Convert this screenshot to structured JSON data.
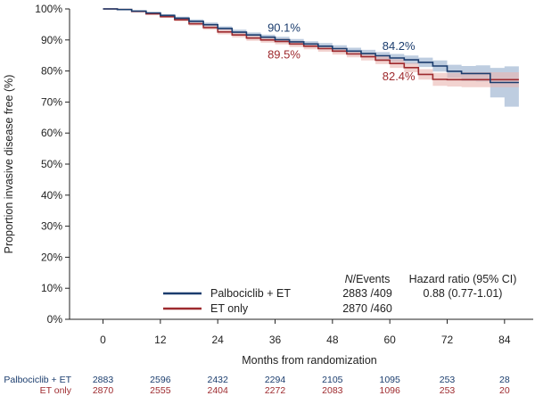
{
  "chart_data": {
    "type": "line",
    "title": "",
    "xlabel": "Months from randomization",
    "ylabel": "Proportion invasive disease free (%)",
    "xlim": [
      -7,
      90
    ],
    "ylim": [
      0,
      100
    ],
    "xticks": [
      0,
      12,
      24,
      36,
      48,
      60,
      72,
      84
    ],
    "yticks": [
      0,
      10,
      20,
      30,
      40,
      50,
      60,
      70,
      80,
      90,
      100
    ],
    "ytick_labels": [
      "0%",
      "10%",
      "20%",
      "30%",
      "40%",
      "50%",
      "60%",
      "70%",
      "80%",
      "90%",
      "100%"
    ],
    "colors": {
      "palbociclib": "#1b3d6e",
      "et_only": "#9e2a2e",
      "palbociclib_ci": "#a8bcd6",
      "et_only_ci": "#eab5b0"
    },
    "series": [
      {
        "name": "Palbociclib + ET",
        "color": "#1b3d6e",
        "x": [
          0,
          3,
          6,
          9,
          12,
          15,
          18,
          21,
          24,
          27,
          30,
          33,
          36,
          39,
          42,
          45,
          48,
          51,
          54,
          57,
          60,
          63,
          66,
          69,
          72,
          75,
          78,
          81,
          84,
          87
        ],
        "y": [
          100,
          99.8,
          99.3,
          98.7,
          97.9,
          97.0,
          96.0,
          94.9,
          93.7,
          92.5,
          91.6,
          90.9,
          90.1,
          89.4,
          88.7,
          88.0,
          87.2,
          86.4,
          85.6,
          84.9,
          84.2,
          83.6,
          82.8,
          81.6,
          79.9,
          79.2,
          79.2,
          76.3,
          76.3,
          76.3
        ],
        "ci_upper": [
          100,
          99.9,
          99.5,
          99.0,
          98.3,
          97.5,
          96.6,
          95.6,
          94.4,
          93.3,
          92.4,
          91.7,
          91.0,
          90.3,
          89.6,
          89.0,
          88.3,
          87.5,
          86.8,
          86.1,
          85.5,
          85.0,
          84.3,
          83.4,
          82.0,
          81.6,
          81.8,
          81.0,
          81.5,
          81.5
        ],
        "ci_lower": [
          100,
          99.7,
          99.1,
          98.4,
          97.5,
          96.5,
          95.4,
          94.2,
          93.0,
          91.7,
          90.8,
          90.1,
          89.2,
          88.5,
          87.8,
          87.0,
          86.1,
          85.3,
          84.4,
          83.7,
          82.9,
          82.2,
          81.3,
          79.8,
          77.8,
          76.8,
          76.6,
          71.5,
          68.5,
          68.5
        ]
      },
      {
        "name": "ET only",
        "color": "#9e2a2e",
        "x": [
          0,
          3,
          6,
          9,
          12,
          15,
          18,
          21,
          24,
          27,
          30,
          33,
          36,
          39,
          42,
          45,
          48,
          51,
          54,
          57,
          60,
          63,
          66,
          69,
          72,
          75,
          78,
          81,
          84,
          87
        ],
        "y": [
          100,
          99.8,
          99.2,
          98.4,
          97.5,
          96.5,
          95.2,
          94.0,
          92.6,
          91.6,
          90.6,
          90.0,
          89.5,
          88.7,
          88.0,
          87.2,
          86.4,
          85.5,
          84.6,
          83.5,
          82.4,
          81.1,
          78.9,
          77.3,
          77.2,
          77.2,
          77.2,
          77.2,
          77.2,
          77.2
        ],
        "ci_upper": [
          100,
          99.9,
          99.4,
          98.7,
          97.9,
          97.0,
          95.8,
          94.7,
          93.4,
          92.4,
          91.5,
          90.9,
          90.4,
          89.7,
          89.0,
          88.2,
          87.5,
          86.6,
          85.8,
          84.8,
          83.8,
          82.6,
          80.6,
          79.4,
          79.4,
          79.6,
          79.6,
          79.6,
          79.6,
          79.6
        ],
        "ci_lower": [
          100,
          99.7,
          99.0,
          98.1,
          97.1,
          96.0,
          94.6,
          93.3,
          91.8,
          90.8,
          89.7,
          89.1,
          88.6,
          87.7,
          87.0,
          86.2,
          85.3,
          84.4,
          83.4,
          82.2,
          81.0,
          79.6,
          77.2,
          75.2,
          75.0,
          74.8,
          74.8,
          74.8,
          74.8,
          74.8
        ]
      }
    ],
    "annotations": [
      {
        "text": "90.1%",
        "x": 36,
        "y": 90.1,
        "series": 0,
        "placement": "above"
      },
      {
        "text": "89.5%",
        "x": 36,
        "y": 89.5,
        "series": 1,
        "placement": "below"
      },
      {
        "text": "84.2%",
        "x": 60,
        "y": 84.2,
        "series": 0,
        "placement": "above"
      },
      {
        "text": "82.4%",
        "x": 60,
        "y": 82.4,
        "series": 1,
        "placement": "below"
      }
    ],
    "legend": {
      "placement": "bottom-center",
      "col_events_header": "N/Events",
      "col_events_header_italic": "N",
      "col_events_header_rest": "/Events",
      "col_hr_header": "Hazard ratio (95% CI)",
      "rows": [
        {
          "label": "Palbociclib + ET",
          "events": "2883 /409",
          "hr": "0.88 (0.77-1.01)",
          "series": 0
        },
        {
          "label": "ET only",
          "events": "2870 /460",
          "hr": "",
          "series": 1
        }
      ]
    },
    "at_risk": {
      "rows": [
        {
          "label": "Palbociclib + ET",
          "series": 0,
          "values": [
            "2883",
            "2596",
            "2432",
            "2294",
            "2105",
            "1095",
            "253",
            "28"
          ]
        },
        {
          "label": "ET only",
          "series": 1,
          "values": [
            "2870",
            "2555",
            "2404",
            "2272",
            "2083",
            "1096",
            "253",
            "20"
          ]
        }
      ]
    }
  }
}
